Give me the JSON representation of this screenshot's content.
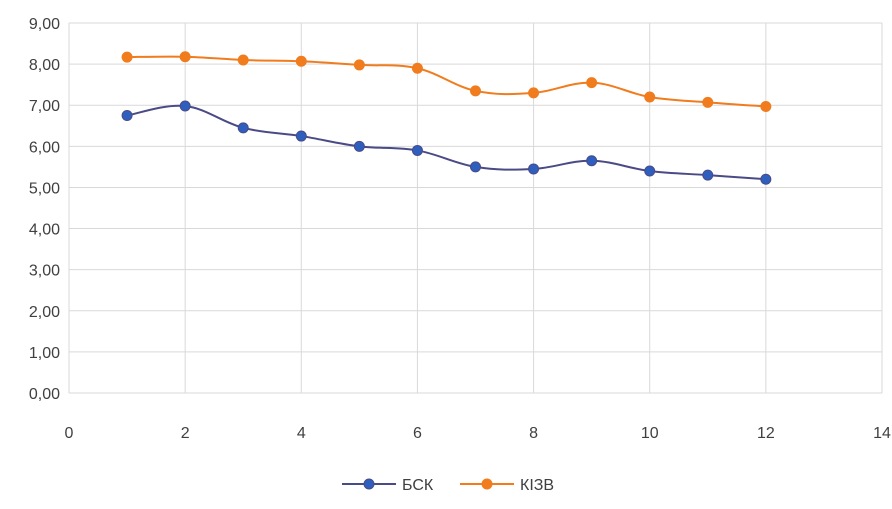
{
  "chart_data": {
    "type": "line",
    "title": "",
    "xlabel": "",
    "ylabel": "",
    "xlim": [
      0,
      14
    ],
    "ylim": [
      0,
      9
    ],
    "x_ticks": [
      "0",
      "2",
      "4",
      "6",
      "8",
      "10",
      "12",
      "14"
    ],
    "y_ticks": [
      "0,00",
      "1,00",
      "2,00",
      "3,00",
      "4,00",
      "5,00",
      "6,00",
      "7,00",
      "8,00",
      "9,00"
    ],
    "grid": "vertical and horizontal",
    "legend_position": "bottom",
    "x": [
      1,
      2,
      3,
      4,
      5,
      6,
      7,
      8,
      9,
      10,
      11,
      12
    ],
    "series": [
      {
        "name": "БСК",
        "color": "#4a4a86",
        "marker_color": "#2f5fbe",
        "values": [
          6.75,
          6.98,
          6.45,
          6.25,
          6.0,
          5.9,
          5.5,
          5.45,
          5.65,
          5.4,
          5.3,
          5.2
        ]
      },
      {
        "name": "КІЗВ",
        "color": "#f07c1e",
        "marker_color": "#f07c1e",
        "values": [
          8.17,
          8.18,
          8.1,
          8.07,
          7.98,
          7.9,
          7.35,
          7.3,
          7.55,
          7.2,
          7.07,
          6.97
        ]
      }
    ]
  }
}
